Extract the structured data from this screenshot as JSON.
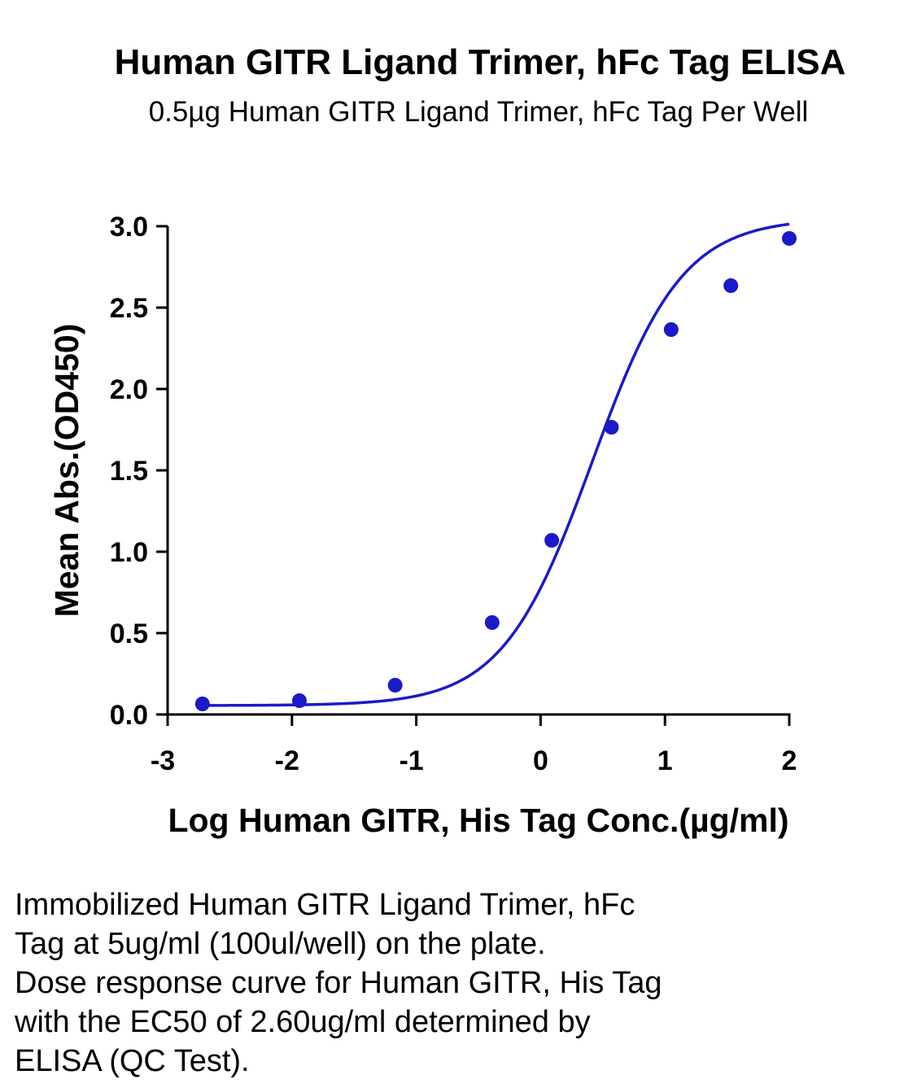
{
  "chart_data": {
    "type": "scatter",
    "title": "Human GITR Ligand Trimer, hFc Tag ELISA",
    "subtitle": "0.5µg Human GITR Ligand Trimer, hFc Tag Per Well",
    "xlabel": "Log Human GITR, His Tag Conc.(µg/ml)",
    "ylabel": "Mean Abs.(OD450)",
    "xlim": [
      -3,
      2
    ],
    "ylim": [
      0,
      3
    ],
    "x_ticks": [
      "-3",
      "-2",
      "-1",
      "0",
      "1",
      "2"
    ],
    "y_ticks": [
      "0.0",
      "0.5",
      "1.0",
      "1.5",
      "2.0",
      "2.5",
      "3.0"
    ],
    "grid": false,
    "color": "#1a1ac8",
    "series": [
      {
        "x": [
          -2.72,
          -1.94,
          -1.17,
          -0.39,
          0.09,
          0.57,
          1.05,
          1.53,
          2.0
        ],
        "y": [
          0.065,
          0.085,
          0.18,
          0.565,
          1.07,
          1.765,
          2.365,
          2.635,
          2.925
        ]
      }
    ],
    "fit_curve": {
      "model": "4PL",
      "bottom": 0.055,
      "top": 3.05,
      "logEC50": 0.415,
      "hill": 1.2
    }
  },
  "caption": {
    "lines": [
      "Immobilized Human GITR Ligand Trimer, hFc",
      "Tag at 5ug/ml (100ul/well) on the plate.",
      "Dose response curve for Human GITR, His Tag",
      "with the EC50 of 2.60ug/ml determined by",
      "ELISA (QC Test)."
    ]
  }
}
